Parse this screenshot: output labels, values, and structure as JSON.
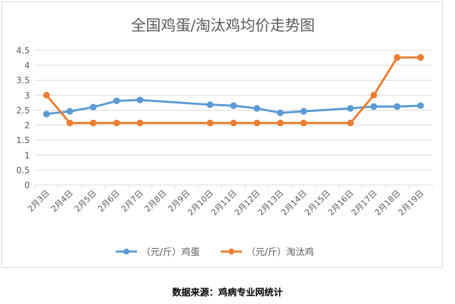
{
  "chart_data": {
    "type": "line",
    "title": "全国鸡蛋/淘汰鸡均价走势图",
    "categories": [
      "2月3日",
      "2月4日",
      "2月5日",
      "2月6日",
      "2月7日",
      "2月8日",
      "2月9日",
      "2月10日",
      "2月11日",
      "2月12日",
      "2月13日",
      "2月14日",
      "2月15日",
      "2月16日",
      "2月17日",
      "2月18日",
      "2月19日"
    ],
    "yticks": [
      "0",
      "0.5",
      "1",
      "1.5",
      "2",
      "2.5",
      "3",
      "3.5",
      "4",
      "4.5"
    ],
    "ylim": [
      0,
      4.5
    ],
    "grid": true,
    "legend_position": "bottom",
    "series": [
      {
        "name": "（元/斤）鸡蛋",
        "color": "#5b9bd5",
        "values": [
          2.37,
          2.46,
          2.6,
          2.81,
          2.84,
          null,
          null,
          2.68,
          2.65,
          2.56,
          2.41,
          2.46,
          null,
          2.56,
          2.62,
          2.62,
          2.65
        ]
      },
      {
        "name": "（元/斤）淘汰鸡",
        "color": "#ed7d31",
        "values": [
          3.0,
          2.07,
          2.07,
          2.07,
          2.07,
          null,
          null,
          2.07,
          2.07,
          2.07,
          2.07,
          2.07,
          null,
          2.07,
          3.0,
          4.26,
          4.26
        ]
      }
    ]
  },
  "source_text": "数据来源：鸡病专业网统计"
}
